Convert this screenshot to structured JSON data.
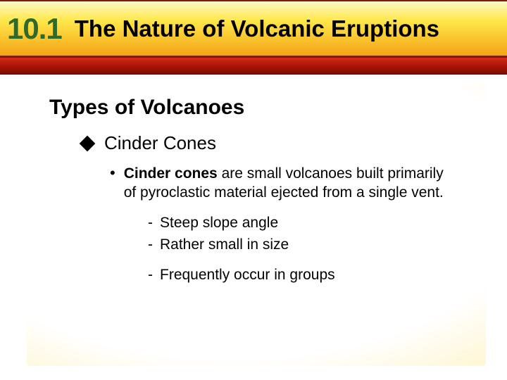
{
  "header": {
    "section_number": "10.1",
    "title": "The Nature of Volcanic Eruptions",
    "number_color": "#2f6a2a",
    "title_color": "#000000",
    "bar_gradient_top": "#fff8c8",
    "bar_gradient_mid": "#ffe84a",
    "bar_gradient_bottom": "#f5a316",
    "red_band_top": "#d42b17",
    "red_band_bottom": "#7b0c04"
  },
  "content": {
    "heading": "Types of Volcanoes",
    "subheading": "Cinder Cones",
    "bullet_bold": "Cinder cones",
    "bullet_rest": " are small volcanoes built primarily of pyroclastic material ejected from a single vent.",
    "dash1": "Steep slope angle",
    "dash2": "Rather small in size",
    "dash3": "Frequently occur in groups",
    "background_inner": "#ffffff",
    "background_outer": "#f8be3a",
    "heading_fontsize": 30,
    "subheading_fontsize": 26,
    "body_fontsize": 21
  }
}
